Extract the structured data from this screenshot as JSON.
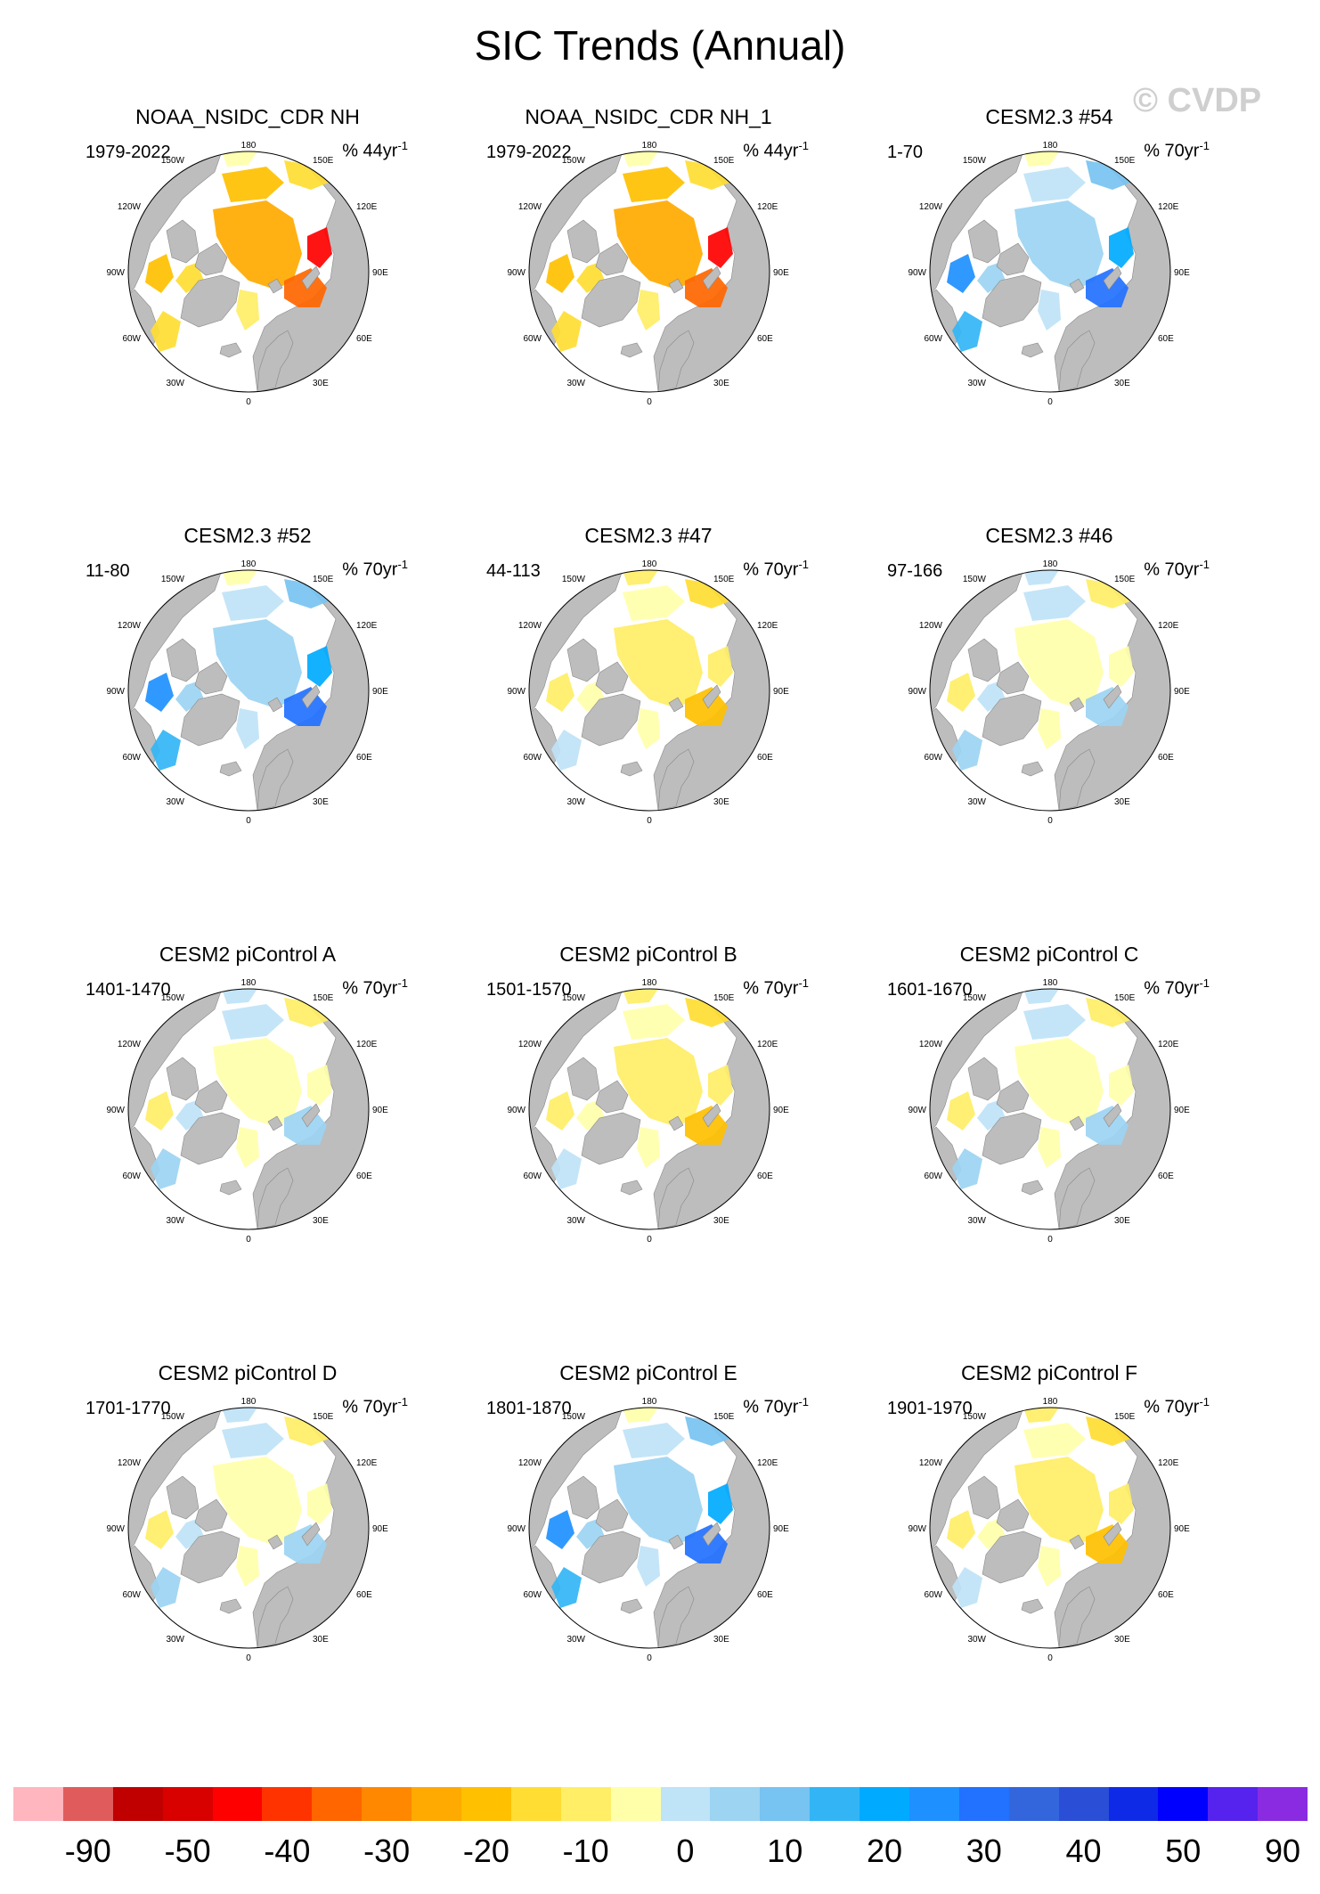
{
  "title": "SIC Trends (Annual)",
  "watermark": "© CVDP",
  "lon_labels": {
    "n": "180",
    "ne": "150E",
    "e1": "120E",
    "e2": "90E",
    "e3": "60E",
    "se": "30E",
    "s": "0",
    "sw": "30W",
    "w3": "60W",
    "w2": "90W",
    "w1": "120W",
    "nw": "150W"
  },
  "colors": {
    "land": "#bdbdbd",
    "ocean": "#ffffff",
    "colorbar": [
      "#ffb6bf",
      "#e05c5c",
      "#c00000",
      "#d90000",
      "#ff0000",
      "#ff3300",
      "#ff6600",
      "#ff8800",
      "#ffaa00",
      "#ffc000",
      "#ffdd33",
      "#ffee66",
      "#ffffaa",
      "#bfe3f7",
      "#9cd4f2",
      "#77c3f1",
      "#33b5f5",
      "#00aaff",
      "#1e90ff",
      "#2271ff",
      "#3366dd",
      "#2a4fd6",
      "#0f2ae6",
      "#0000ff",
      "#5522ee",
      "#8a2be2"
    ]
  },
  "colorbar_labels": [
    "-90",
    "-50",
    "-40",
    "-30",
    "-20",
    "-10",
    "0",
    "10",
    "20",
    "30",
    "40",
    "50",
    "90"
  ],
  "panels": [
    {
      "title": "NOAA_NSIDC_CDR NH",
      "range": "1979-2022",
      "units": "% 44yr",
      "style": "obs"
    },
    {
      "title": "NOAA_NSIDC_CDR NH_1",
      "range": "1979-2022",
      "units": "% 44yr",
      "style": "obs"
    },
    {
      "title": "CESM2.3 #54",
      "range": "1-70",
      "units": "% 70yr",
      "style": "neg"
    },
    {
      "title": "CESM2.3 #52",
      "range": "11-80",
      "units": "% 70yr",
      "style": "neg"
    },
    {
      "title": "CESM2.3 #47",
      "range": "44-113",
      "units": "% 70yr",
      "style": "pos"
    },
    {
      "title": "CESM2.3 #46",
      "range": "97-166",
      "units": "% 70yr",
      "style": "mix"
    },
    {
      "title": "CESM2 piControl A",
      "range": "1401-1470",
      "units": "% 70yr",
      "style": "mix"
    },
    {
      "title": "CESM2 piControl B",
      "range": "1501-1570",
      "units": "% 70yr",
      "style": "pos"
    },
    {
      "title": "CESM2 piControl C",
      "range": "1601-1670",
      "units": "% 70yr",
      "style": "mix"
    },
    {
      "title": "CESM2 piControl D",
      "range": "1701-1770",
      "units": "% 70yr",
      "style": "mix"
    },
    {
      "title": "CESM2 piControl E",
      "range": "1801-1870",
      "units": "% 70yr",
      "style": "neg"
    },
    {
      "title": "CESM2 piControl F",
      "range": "1901-1970",
      "units": "% 70yr",
      "style": "pos"
    }
  ]
}
